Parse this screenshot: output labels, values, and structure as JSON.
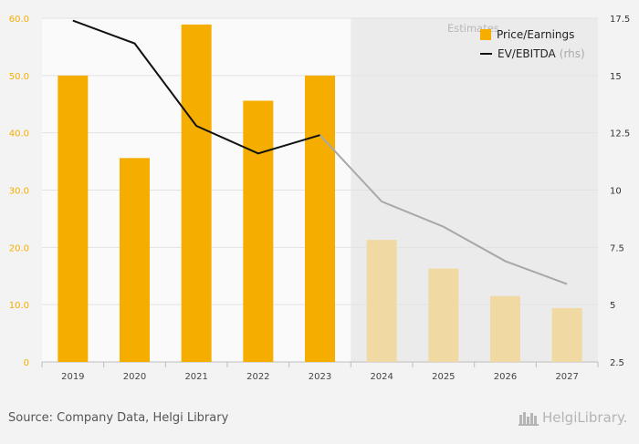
{
  "chart_data": {
    "type": "bar",
    "categories": [
      "2019",
      "2020",
      "2021",
      "2022",
      "2023",
      "2024",
      "2025",
      "2026",
      "2027"
    ],
    "series": [
      {
        "name": "Price/Earnings",
        "type": "bar",
        "axis": "left",
        "values": [
          50.0,
          35.6,
          58.9,
          45.6,
          50.0,
          21.3,
          16.3,
          11.5,
          9.4
        ]
      },
      {
        "name": "EV/EBITDA",
        "type": "line",
        "axis": "right",
        "values": [
          17.4,
          16.4,
          12.8,
          11.6,
          12.4,
          9.5,
          8.4,
          6.9,
          5.9
        ]
      }
    ],
    "estimates_from_index": 5,
    "y_left": {
      "min": 0,
      "max": 60,
      "ticks": [
        "0",
        "10.0",
        "20.0",
        "30.0",
        "40.0",
        "50.0",
        "60.0"
      ],
      "tick_values": [
        0,
        10,
        20,
        30,
        40,
        50,
        60
      ]
    },
    "y_right": {
      "min": 2.5,
      "max": 17.5,
      "ticks": [
        "2.5",
        "5",
        "7.5",
        "10",
        "12.5",
        "15",
        "17.5"
      ],
      "tick_values": [
        2.5,
        5,
        7.5,
        10,
        12.5,
        15,
        17.5
      ]
    },
    "estimates_label": "Estimates",
    "legend": {
      "position": "top-right",
      "bar_label": "Price/Earnings",
      "line_label": "EV/EBITDA",
      "line_suffix": "(rhs)"
    },
    "grid": true,
    "colors": {
      "bar": "#f5ae00",
      "bar_estimate": "#f1d9a3",
      "line": "#111111",
      "line_estimate": "#a8a8a8",
      "estimate_band": "#ebebeb",
      "left_ticks": "#f5ae00",
      "right_ticks": "#333333"
    }
  },
  "footer": {
    "source": "Source: Company Data, Helgi Library",
    "logo_left": "Helgi",
    "logo_right": "Library."
  }
}
